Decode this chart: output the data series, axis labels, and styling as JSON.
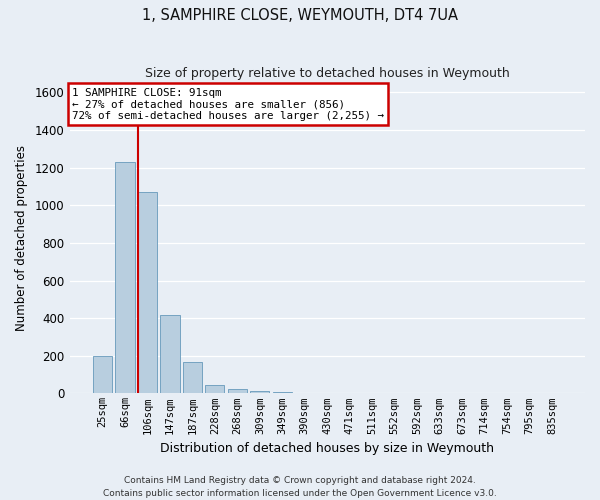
{
  "title": "1, SAMPHIRE CLOSE, WEYMOUTH, DT4 7UA",
  "subtitle": "Size of property relative to detached houses in Weymouth",
  "xlabel": "Distribution of detached houses by size in Weymouth",
  "ylabel": "Number of detached properties",
  "categories": [
    "25sqm",
    "66sqm",
    "106sqm",
    "147sqm",
    "187sqm",
    "228sqm",
    "268sqm",
    "309sqm",
    "349sqm",
    "390sqm",
    "430sqm",
    "471sqm",
    "511sqm",
    "552sqm",
    "592sqm",
    "633sqm",
    "673sqm",
    "714sqm",
    "754sqm",
    "795sqm",
    "835sqm"
  ],
  "values": [
    200,
    1230,
    1070,
    415,
    165,
    45,
    25,
    15,
    5,
    2,
    0,
    0,
    0,
    0,
    0,
    0,
    0,
    0,
    0,
    0,
    0
  ],
  "bar_color": "#b8cedf",
  "bar_edge_color": "#6699bb",
  "background_color": "#e8eef5",
  "grid_color": "#ffffff",
  "red_line_x": 1.58,
  "annotation_line1": "1 SAMPHIRE CLOSE: 91sqm",
  "annotation_line2": "← 27% of detached houses are smaller (856)",
  "annotation_line3": "72% of semi-detached houses are larger (2,255) →",
  "annotation_box_color": "#ffffff",
  "annotation_box_edge": "#cc0000",
  "ylim": [
    0,
    1650
  ],
  "yticks": [
    0,
    200,
    400,
    600,
    800,
    1000,
    1200,
    1400,
    1600
  ],
  "footer_line1": "Contains HM Land Registry data © Crown copyright and database right 2024.",
  "footer_line2": "Contains public sector information licensed under the Open Government Licence v3.0."
}
